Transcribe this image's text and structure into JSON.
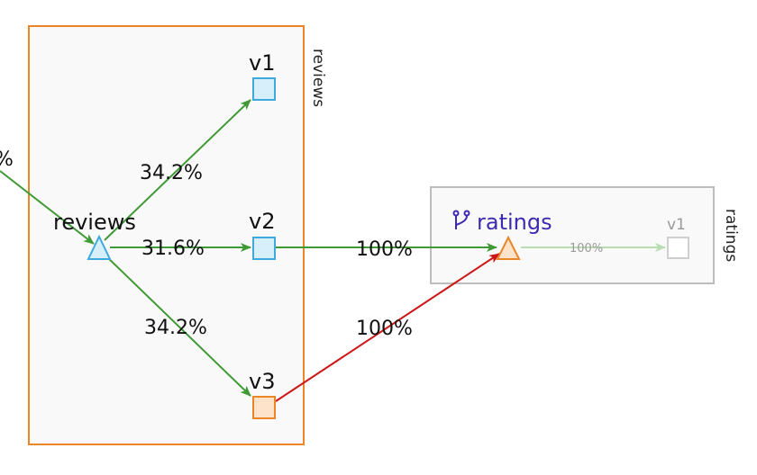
{
  "groups": {
    "reviews_box_label": "reviews",
    "ratings_box_label": "ratings"
  },
  "nodes": {
    "reviews_service": "reviews",
    "reviews_v1": "v1",
    "reviews_v2": "v2",
    "reviews_v3": "v3",
    "ratings_service": "ratings",
    "ratings_v1": "v1"
  },
  "edges": {
    "incoming_left": "%",
    "to_v1": "34.2%",
    "to_v2": "31.6%",
    "to_v3": "34.2%",
    "v2_to_ratings": "100%",
    "v3_to_ratings": "100%",
    "ratings_to_v1": "100%"
  },
  "colors": {
    "healthy_edge": "#3f9a35",
    "error_edge": "#cc1818",
    "faded_edge": "#b9dcb2",
    "reviews_box_border": "#ea8627",
    "ratings_box_border": "#bdbdbd",
    "service_node": "#3fa9dd",
    "unhealthy_node": "#ea8627"
  },
  "icons": {
    "ratings_app_icon": "branch-icon"
  }
}
